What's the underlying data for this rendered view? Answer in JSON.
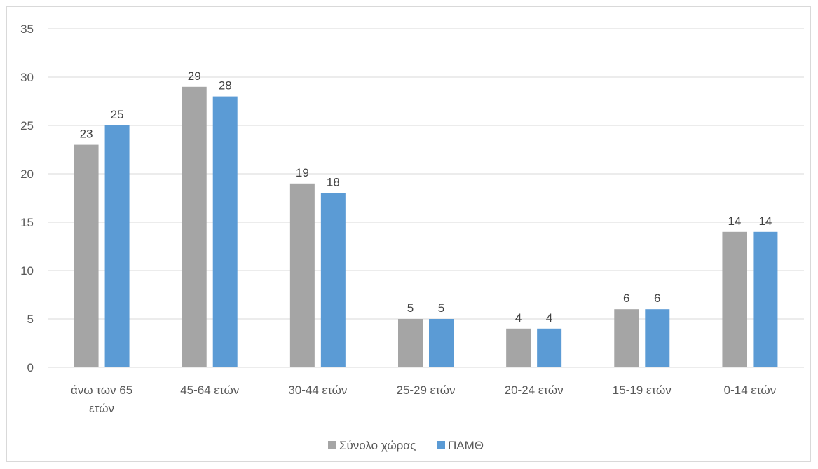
{
  "chart_data": {
    "type": "bar",
    "categories": [
      [
        "άνω των 65",
        "ετών"
      ],
      [
        "45-64 ετών"
      ],
      [
        "30-44 ετών"
      ],
      [
        "25-29 ετών"
      ],
      [
        "20-24 ετών"
      ],
      [
        "15-19 ετών"
      ],
      [
        "0-14 ετών"
      ]
    ],
    "series": [
      {
        "name": "Σύνολο χώρας",
        "color": "#a5a5a5",
        "values": [
          23,
          29,
          19,
          5,
          4,
          6,
          14
        ]
      },
      {
        "name": "ΠΑΜΘ",
        "color": "#5b9bd5",
        "values": [
          25,
          28,
          18,
          5,
          4,
          6,
          14
        ]
      }
    ],
    "y_ticks": [
      0,
      5,
      10,
      15,
      20,
      25,
      30,
      35
    ],
    "ylim": [
      0,
      35
    ],
    "grid": true,
    "legend_position": "bottom",
    "data_labels": true,
    "gridline_color": "#d9d9d9",
    "axis_color": "#d9d9d9"
  }
}
